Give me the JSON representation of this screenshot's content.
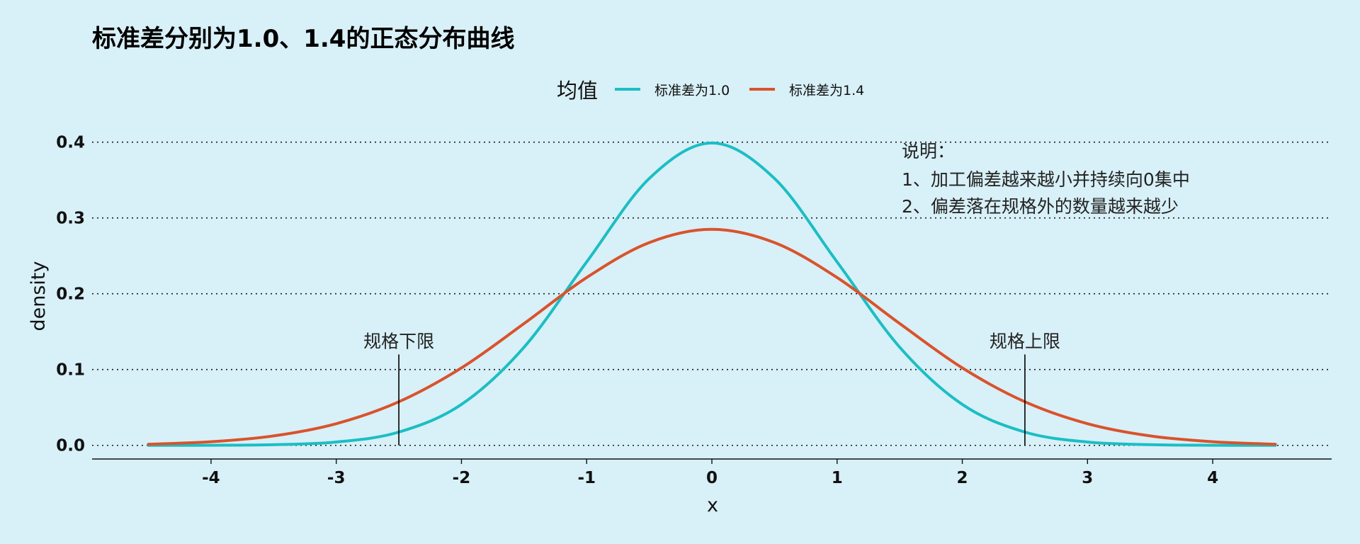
{
  "chart_data": {
    "type": "line",
    "title": "标准差分别为1.0、1.4的正态分布曲线",
    "xlabel": "x",
    "ylabel": "density",
    "xlim": [
      -4.95,
      4.95
    ],
    "ylim": [
      -0.018,
      0.41
    ],
    "x_ticks": [
      -4,
      -3,
      -2,
      -1,
      0,
      1,
      2,
      3,
      4
    ],
    "x_tick_labels": [
      "-4",
      "-3",
      "-2",
      "-1",
      "0",
      "1",
      "2",
      "3",
      "4"
    ],
    "y_ticks": [
      0.0,
      0.1,
      0.2,
      0.3,
      0.4
    ],
    "y_tick_labels": [
      "0.0",
      "0.1",
      "0.2",
      "0.3",
      "0.4"
    ],
    "grid": "horizontal dotted",
    "legend": {
      "title": "均值",
      "position": "top-center",
      "entries": [
        "标准差为1.0",
        "标准差为1.4"
      ]
    },
    "series": [
      {
        "name": "标准差为1.0",
        "color": "#1bbec4",
        "x": [
          -4.5,
          -4.0,
          -3.5,
          -3.0,
          -2.5,
          -2.0,
          -1.5,
          -1.0,
          -0.5,
          0.0,
          0.5,
          1.0,
          1.5,
          2.0,
          2.5,
          3.0,
          3.5,
          4.0,
          4.5
        ],
        "y": [
          0.0,
          0.0001,
          0.0009,
          0.0044,
          0.0175,
          0.054,
          0.1295,
          0.242,
          0.3521,
          0.3989,
          0.3521,
          0.242,
          0.1295,
          0.054,
          0.0175,
          0.0044,
          0.0009,
          0.0001,
          0.0
        ]
      },
      {
        "name": "标准差为1.4",
        "color": "#d9532c",
        "x": [
          -4.5,
          -4.0,
          -3.5,
          -3.0,
          -2.5,
          -2.0,
          -1.5,
          -1.0,
          -0.5,
          0.0,
          0.5,
          1.0,
          1.5,
          2.0,
          2.5,
          3.0,
          3.5,
          4.0,
          4.5
        ],
        "y": [
          0.0015,
          0.0048,
          0.0125,
          0.0286,
          0.0575,
          0.1022,
          0.1607,
          0.2214,
          0.2675,
          0.285,
          0.2675,
          0.2214,
          0.1607,
          0.1022,
          0.0575,
          0.0286,
          0.0125,
          0.0048,
          0.0015
        ]
      }
    ],
    "annotations": {
      "note_title": "说明：",
      "note_lines": [
        "1、加工偏差越来越小并持续向0集中",
        "2、偏差落在规格外的数量越来越少"
      ],
      "lower_limit": {
        "label": "规格下限",
        "x": -2.5,
        "y_top": 0.12
      },
      "upper_limit": {
        "label": "规格上限",
        "x": 2.5,
        "y_top": 0.12
      }
    }
  }
}
